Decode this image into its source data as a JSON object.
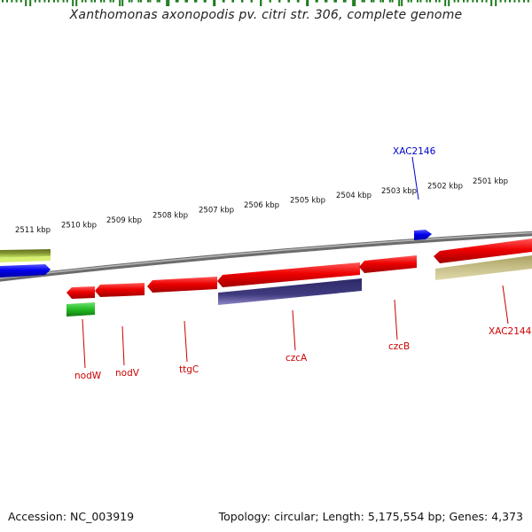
{
  "title": "Xanthomonas axonopodis pv. citri str. 306, complete genome",
  "footer": {
    "accession": "Accession: NC_003919",
    "topology": "Topology: circular; Length: 5,175,554 bp; Genes: 4,373"
  },
  "scale_labels": [
    "2511 kbp",
    "2510 kbp",
    "2509 kbp",
    "2508 kbp",
    "2507 kbp",
    "2506 kbp",
    "2505 kbp",
    "2504 kbp",
    "2503 kbp",
    "2502 kbp",
    "2501 kbp"
  ],
  "gene_labels": {
    "nodW": "nodW",
    "nodV": "nodV",
    "ttgC": "ttgC",
    "czcA": "czcA",
    "czcB": "czcB",
    "XAC2144": "XAC2144",
    "XAC2146": "XAC2146"
  },
  "colors": {
    "gene_red": "#ee0000",
    "gene_blue": "#0000ee",
    "gene_green": "#22bb22",
    "gene_olive": "#7a8a2a",
    "gene_khaki": "#c8c08a",
    "gene_purple": "#3f3a7e",
    "backbone": "#8a8a8a",
    "ruler": "#1a7a1a",
    "label_red": "#cc0000",
    "label_blue": "#0000cc"
  }
}
